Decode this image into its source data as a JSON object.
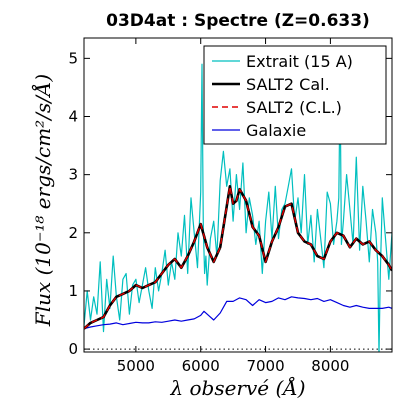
{
  "chart_data": {
    "type": "line",
    "title": "03D4at : Spectre (Z=0.633)",
    "xlabel": "λ observé (Å)",
    "ylabel": "Flux (10⁻¹⁸ ergs/cm²/s/Å)",
    "xlim": [
      4200,
      8950
    ],
    "ylim": [
      -0.05,
      5.35
    ],
    "x_ticks": [
      5000,
      6000,
      7000,
      8000
    ],
    "y_ticks": [
      0,
      1,
      2,
      3,
      4,
      5
    ],
    "grid": false,
    "legend_position": "top-right",
    "zero_line": "dotted",
    "series": [
      {
        "name": "Extrait (15 A)",
        "color": "#00bfbf",
        "style": "solid",
        "x": [
          4200,
          4250,
          4300,
          4350,
          4400,
          4450,
          4500,
          4550,
          4600,
          4650,
          4700,
          4750,
          4800,
          4850,
          4900,
          4950,
          5000,
          5050,
          5100,
          5150,
          5200,
          5250,
          5300,
          5350,
          5400,
          5450,
          5500,
          5550,
          5600,
          5650,
          5700,
          5750,
          5800,
          5850,
          5900,
          5950,
          6000,
          6020,
          6040,
          6060,
          6080,
          6100,
          6150,
          6200,
          6250,
          6300,
          6350,
          6400,
          6450,
          6500,
          6550,
          6600,
          6650,
          6700,
          6750,
          6800,
          6850,
          6900,
          6950,
          7000,
          7050,
          7100,
          7150,
          7200,
          7250,
          7300,
          7350,
          7400,
          7450,
          7500,
          7550,
          7600,
          7650,
          7700,
          7750,
          7800,
          7850,
          7900,
          7950,
          8000,
          8050,
          8100,
          8130,
          8150,
          8170,
          8200,
          8250,
          8300,
          8350,
          8400,
          8450,
          8500,
          8550,
          8600,
          8650,
          8700,
          8730,
          8750,
          8770,
          8800,
          8850,
          8900,
          8950
        ],
        "y": [
          0.4,
          1.0,
          0.5,
          0.9,
          0.6,
          1.5,
          0.3,
          1.2,
          0.7,
          1.6,
          0.9,
          0.5,
          1.2,
          1.3,
          0.6,
          1.1,
          1.2,
          0.8,
          1.1,
          1.4,
          1.0,
          0.7,
          1.4,
          1.0,
          1.3,
          1.7,
          1.1,
          1.5,
          1.2,
          2.0,
          1.6,
          2.3,
          1.3,
          2.6,
          2.0,
          1.4,
          2.7,
          4.9,
          2.1,
          1.3,
          1.6,
          1.1,
          1.9,
          2.2,
          1.6,
          2.9,
          3.4,
          2.8,
          3.1,
          2.2,
          3.0,
          2.4,
          3.2,
          2.0,
          2.6,
          2.3,
          1.8,
          2.2,
          1.3,
          2.2,
          2.7,
          1.9,
          2.8,
          1.9,
          2.4,
          2.5,
          2.8,
          3.1,
          2.2,
          2.6,
          2.0,
          3.0,
          1.8,
          2.3,
          1.5,
          2.4,
          1.9,
          1.4,
          2.7,
          2.5,
          1.8,
          2.2,
          2.6,
          4.6,
          1.8,
          2.2,
          3.0,
          2.4,
          1.8,
          3.3,
          1.7,
          2.8,
          2.2,
          1.5,
          2.4,
          2.0,
          1.5,
          -0.1,
          1.3,
          2.6,
          1.9,
          1.2,
          2.0
        ]
      },
      {
        "name": "SALT2 Cal.",
        "color": "#000000",
        "style": "solid",
        "x": [
          4200,
          4300,
          4400,
          4500,
          4600,
          4700,
          4800,
          4900,
          5000,
          5100,
          5200,
          5300,
          5400,
          5500,
          5600,
          5700,
          5800,
          5900,
          6000,
          6100,
          6200,
          6300,
          6400,
          6450,
          6500,
          6550,
          6600,
          6700,
          6800,
          6900,
          7000,
          7100,
          7200,
          7300,
          7400,
          7500,
          7600,
          7700,
          7800,
          7900,
          8000,
          8100,
          8200,
          8300,
          8400,
          8500,
          8600,
          8700,
          8800,
          8900,
          8950
        ],
        "y": [
          0.35,
          0.45,
          0.5,
          0.55,
          0.75,
          0.9,
          0.95,
          1.0,
          1.1,
          1.05,
          1.1,
          1.15,
          1.3,
          1.45,
          1.55,
          1.4,
          1.6,
          1.85,
          2.15,
          1.75,
          1.5,
          1.75,
          2.45,
          2.8,
          2.5,
          2.55,
          2.75,
          2.55,
          2.1,
          1.95,
          1.5,
          1.85,
          2.1,
          2.45,
          2.5,
          2.0,
          1.85,
          1.8,
          1.6,
          1.55,
          1.85,
          2.0,
          1.95,
          1.75,
          1.9,
          1.8,
          1.85,
          1.7,
          1.6,
          1.45,
          1.35
        ]
      },
      {
        "name": "SALT2 (C.L.)",
        "color": "#e00000",
        "style": "dashed",
        "x": [
          4200,
          4300,
          4400,
          4500,
          4600,
          4700,
          4800,
          4900,
          5000,
          5100,
          5200,
          5300,
          5400,
          5500,
          5600,
          5700,
          5800,
          5900,
          6000,
          6100,
          6200,
          6300,
          6400,
          6450,
          6500,
          6550,
          6600,
          6700,
          6800,
          6900,
          7000,
          7100,
          7200,
          7300,
          7400,
          7500,
          7600,
          7700,
          7800,
          7900,
          8000,
          8100,
          8200,
          8300,
          8400,
          8500,
          8600,
          8700,
          8800,
          8900,
          8950
        ],
        "y": [
          0.35,
          0.45,
          0.5,
          0.55,
          0.75,
          0.9,
          0.95,
          1.0,
          1.1,
          1.05,
          1.1,
          1.15,
          1.3,
          1.45,
          1.55,
          1.4,
          1.6,
          1.85,
          2.15,
          1.75,
          1.5,
          1.75,
          2.45,
          2.8,
          2.5,
          2.55,
          2.75,
          2.55,
          2.1,
          1.95,
          1.5,
          1.85,
          2.1,
          2.45,
          2.5,
          2.0,
          1.85,
          1.8,
          1.6,
          1.55,
          1.85,
          2.0,
          1.95,
          1.75,
          1.9,
          1.8,
          1.85,
          1.7,
          1.6,
          1.45,
          1.35
        ]
      },
      {
        "name": "Galaxie",
        "color": "#0000dd",
        "style": "solid",
        "x": [
          4200,
          4300,
          4400,
          4500,
          4600,
          4700,
          4800,
          4900,
          5000,
          5100,
          5200,
          5300,
          5400,
          5500,
          5600,
          5700,
          5800,
          5900,
          6000,
          6050,
          6100,
          6150,
          6200,
          6300,
          6400,
          6500,
          6600,
          6700,
          6800,
          6900,
          7000,
          7100,
          7200,
          7300,
          7400,
          7500,
          7600,
          7700,
          7800,
          7900,
          8000,
          8100,
          8200,
          8300,
          8400,
          8500,
          8600,
          8700,
          8800,
          8900,
          8950
        ],
        "y": [
          0.35,
          0.38,
          0.4,
          0.42,
          0.43,
          0.45,
          0.42,
          0.44,
          0.46,
          0.45,
          0.45,
          0.47,
          0.46,
          0.48,
          0.5,
          0.48,
          0.5,
          0.52,
          0.58,
          0.65,
          0.6,
          0.55,
          0.5,
          0.62,
          0.82,
          0.82,
          0.88,
          0.85,
          0.75,
          0.85,
          0.8,
          0.82,
          0.88,
          0.85,
          0.9,
          0.88,
          0.87,
          0.85,
          0.87,
          0.82,
          0.85,
          0.8,
          0.75,
          0.72,
          0.75,
          0.72,
          0.7,
          0.7,
          0.7,
          0.72,
          0.7
        ]
      }
    ]
  }
}
